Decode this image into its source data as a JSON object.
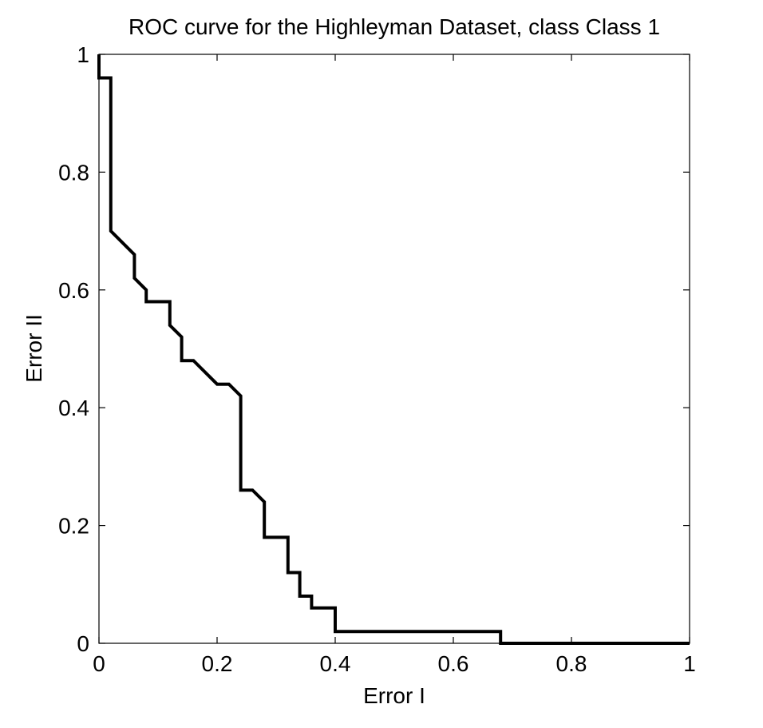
{
  "chart_data": {
    "type": "line",
    "title": "ROC curve for the Highleyman Dataset, class Class 1",
    "xlabel": "Error I",
    "ylabel": "Error II",
    "xlim": [
      0,
      1
    ],
    "ylim": [
      0,
      1
    ],
    "x_ticks": [
      0,
      0.2,
      0.4,
      0.6,
      0.8,
      1
    ],
    "x_tick_labels": [
      "0",
      "0.2",
      "0.4",
      "0.6",
      "0.8",
      "1"
    ],
    "y_ticks": [
      0,
      0.2,
      0.4,
      0.6,
      0.8,
      1
    ],
    "y_tick_labels": [
      "0",
      "0.2",
      "0.4",
      "0.6",
      "0.8",
      "1"
    ],
    "grid": false,
    "line_color": "#000000",
    "series": [
      {
        "x": [
          0,
          0,
          0.02,
          0.02,
          0.06,
          0.06,
          0.08,
          0.08,
          0.12,
          0.12,
          0.14,
          0.14,
          0.16,
          0.2,
          0.22,
          0.24,
          0.24,
          0.26,
          0.28,
          0.28,
          0.32,
          0.32,
          0.34,
          0.34,
          0.36,
          0.36,
          0.4,
          0.4,
          0.68,
          0.68,
          1.0
        ],
        "y": [
          1.0,
          0.96,
          0.96,
          0.7,
          0.66,
          0.62,
          0.6,
          0.58,
          0.58,
          0.54,
          0.52,
          0.48,
          0.48,
          0.44,
          0.44,
          0.42,
          0.26,
          0.26,
          0.24,
          0.18,
          0.18,
          0.12,
          0.12,
          0.08,
          0.08,
          0.06,
          0.06,
          0.02,
          0.02,
          0.0,
          0.0
        ]
      }
    ]
  }
}
